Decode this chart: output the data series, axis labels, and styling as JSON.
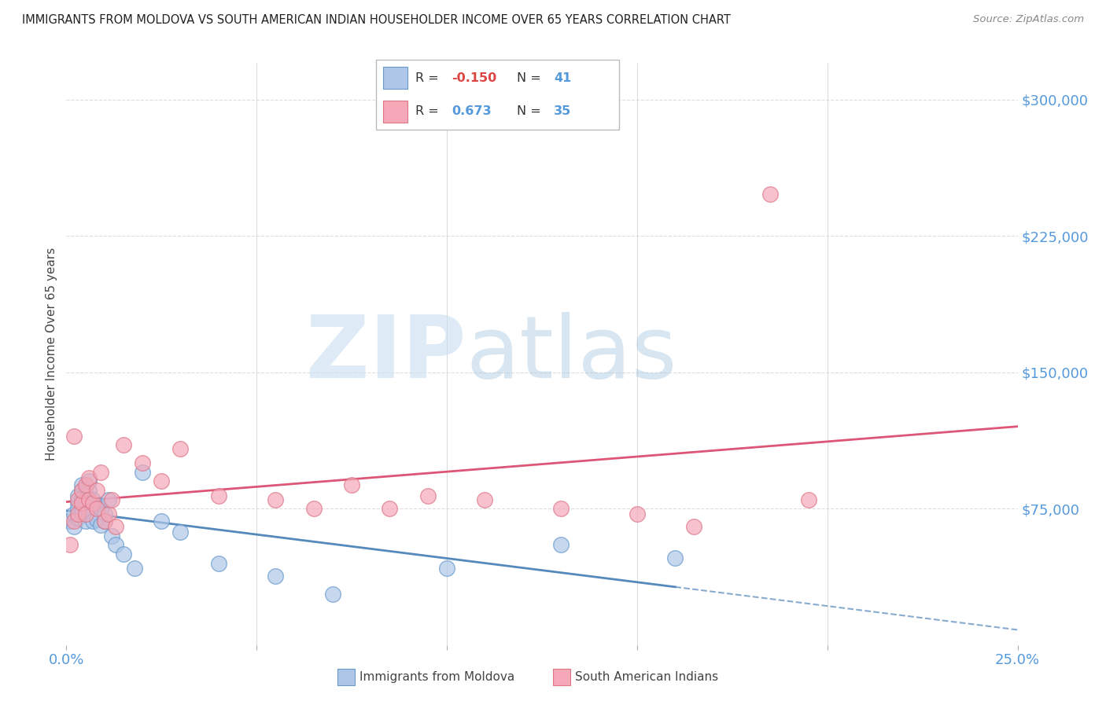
{
  "title": "IMMIGRANTS FROM MOLDOVA VS SOUTH AMERICAN INDIAN HOUSEHOLDER INCOME OVER 65 YEARS CORRELATION CHART",
  "source": "Source: ZipAtlas.com",
  "ylabel": "Householder Income Over 65 years",
  "xlim": [
    0.0,
    0.25
  ],
  "ylim": [
    0,
    320000
  ],
  "xticks": [
    0.0,
    0.05,
    0.1,
    0.15,
    0.2,
    0.25
  ],
  "yticks": [
    0,
    75000,
    150000,
    225000,
    300000
  ],
  "yticklabels": [
    "",
    "$75,000",
    "$150,000",
    "$225,000",
    "$300,000"
  ],
  "color_moldova": "#aec6e8",
  "color_moldova_edge": "#6699cc",
  "color_moldova_line": "#5588bb",
  "color_sai": "#f4a8b8",
  "color_sai_edge": "#dd7788",
  "color_sai_line": "#dd5577",
  "color_axis_blue": "#5599dd",
  "color_grid": "#dddddd",
  "color_r_neg": "#dd4444",
  "color_r_pos": "#5599dd",
  "moldova_x": [
    0.001,
    0.002,
    0.002,
    0.003,
    0.003,
    0.003,
    0.003,
    0.004,
    0.004,
    0.004,
    0.004,
    0.005,
    0.005,
    0.005,
    0.005,
    0.006,
    0.006,
    0.006,
    0.007,
    0.007,
    0.007,
    0.008,
    0.008,
    0.009,
    0.009,
    0.01,
    0.01,
    0.011,
    0.012,
    0.013,
    0.015,
    0.018,
    0.02,
    0.025,
    0.03,
    0.04,
    0.055,
    0.07,
    0.1,
    0.13,
    0.16
  ],
  "moldova_y": [
    68000,
    72000,
    65000,
    78000,
    82000,
    70000,
    75000,
    85000,
    80000,
    73000,
    88000,
    76000,
    68000,
    83000,
    79000,
    85000,
    74000,
    90000,
    80000,
    72000,
    68000,
    77000,
    69000,
    75000,
    66000,
    72000,
    68000,
    80000,
    60000,
    55000,
    50000,
    42000,
    95000,
    68000,
    62000,
    45000,
    38000,
    28000,
    42000,
    55000,
    48000
  ],
  "sai_x": [
    0.001,
    0.002,
    0.002,
    0.003,
    0.003,
    0.004,
    0.004,
    0.005,
    0.005,
    0.006,
    0.006,
    0.007,
    0.008,
    0.008,
    0.009,
    0.01,
    0.011,
    0.012,
    0.013,
    0.015,
    0.02,
    0.025,
    0.03,
    0.04,
    0.055,
    0.065,
    0.075,
    0.085,
    0.095,
    0.11,
    0.13,
    0.15,
    0.165,
    0.185,
    0.195
  ],
  "sai_y": [
    55000,
    115000,
    68000,
    72000,
    80000,
    78000,
    85000,
    88000,
    72000,
    80000,
    92000,
    78000,
    75000,
    85000,
    95000,
    68000,
    72000,
    80000,
    65000,
    110000,
    100000,
    90000,
    108000,
    82000,
    80000,
    75000,
    88000,
    75000,
    82000,
    80000,
    75000,
    72000,
    65000,
    248000,
    80000
  ]
}
